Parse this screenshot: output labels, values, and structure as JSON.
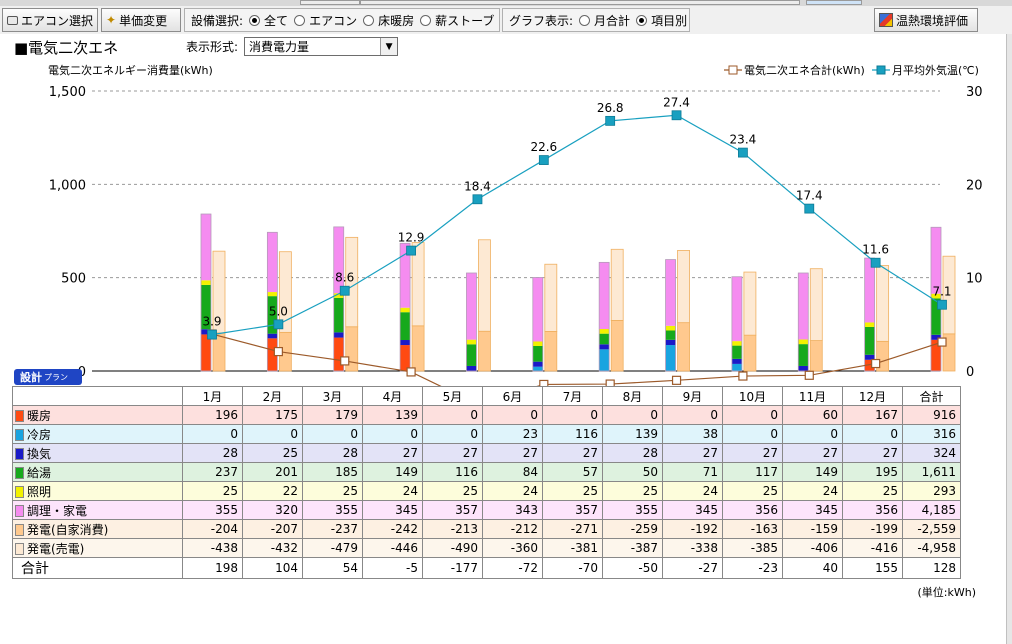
{
  "toolbar": {
    "aircon_select": "エアコン選択",
    "price_change": "単価変更",
    "equip_label": "設備選択:",
    "equip_options": [
      "全て",
      "エアコン",
      "床暖房",
      "薪ストーブ"
    ],
    "equip_selected": 0,
    "graph_label": "グラフ表示:",
    "graph_options": [
      "月合計",
      "項目別"
    ],
    "graph_selected": 1,
    "thermal_eval": "温熱環境評価"
  },
  "panel": {
    "title": "■電気二次エネ",
    "format_label": "表示形式:",
    "format_value": "消費電力量"
  },
  "chart_data": {
    "type": "bar",
    "ylabel": "電気二次エネルギー消費量(kWh)",
    "ylim": [
      0,
      1500
    ],
    "yticks": [
      "1,500",
      "1,000",
      "500",
      "0"
    ],
    "y2lim": [
      0,
      30
    ],
    "y2ticks": [
      "30",
      "20",
      "10",
      "0"
    ],
    "categories": [
      "1月",
      "2月",
      "3月",
      "4月",
      "5月",
      "6月",
      "7月",
      "8月",
      "9月",
      "10月",
      "11月",
      "12月"
    ],
    "consumption_series": [
      {
        "name": "暖房",
        "color": "#ff4a12",
        "values": [
          196,
          175,
          179,
          139,
          0,
          0,
          0,
          0,
          0,
          0,
          60,
          167
        ]
      },
      {
        "name": "冷房",
        "color": "#19a4e0",
        "values": [
          0,
          0,
          0,
          0,
          0,
          23,
          116,
          139,
          38,
          0,
          0,
          0
        ]
      },
      {
        "name": "換気",
        "color": "#1a1ac8",
        "values": [
          28,
          25,
          28,
          27,
          27,
          27,
          27,
          28,
          27,
          27,
          27,
          27
        ]
      },
      {
        "name": "給湯",
        "color": "#16a91c",
        "values": [
          237,
          201,
          185,
          149,
          116,
          84,
          57,
          50,
          71,
          117,
          149,
          195
        ]
      },
      {
        "name": "照明",
        "color": "#f2f200",
        "values": [
          25,
          22,
          25,
          24,
          25,
          24,
          25,
          25,
          24,
          25,
          24,
          25
        ]
      },
      {
        "name": "調理・家電",
        "color": "#f58cf0",
        "values": [
          355,
          320,
          355,
          345,
          357,
          343,
          357,
          355,
          345,
          356,
          345,
          356
        ]
      }
    ],
    "generation_series": [
      {
        "name": "発電(自家消費)",
        "color": "#ffc98e",
        "values": [
          -204,
          -207,
          -237,
          -242,
          -213,
          -212,
          -271,
          -259,
          -192,
          -163,
          -159,
          -199
        ]
      },
      {
        "name": "発電(売電)",
        "color": "#fde9d3",
        "values": [
          -438,
          -432,
          -479,
          -446,
          -490,
          -360,
          -381,
          -387,
          -338,
          -385,
          -406,
          -416
        ]
      }
    ],
    "line_series": [
      {
        "name": "電気二次エネ合計(kWh)",
        "color": "#9c5a2a",
        "axis": "left",
        "values": [
          198,
          104,
          54,
          -5,
          -177,
          -72,
          -70,
          -50,
          -27,
          -23,
          40,
          155
        ]
      },
      {
        "name": "月平均外気温(℃)",
        "color": "#19a0c0",
        "axis": "right",
        "values": [
          3.9,
          5.0,
          8.6,
          12.9,
          18.4,
          22.6,
          26.8,
          27.4,
          23.4,
          17.4,
          11.6,
          7.1
        ],
        "labels": [
          "3.9",
          "5.0",
          "8.6",
          "12.9",
          "18.4",
          "22.6",
          "26.8",
          "27.4",
          "23.4",
          "17.4",
          "11.6",
          "7.1"
        ]
      }
    ],
    "grid": true,
    "legend_position": "top-right"
  },
  "badge": {
    "main": "設計",
    "sub": "プラン"
  },
  "table": {
    "headers": [
      "",
      "1月",
      "2月",
      "3月",
      "4月",
      "5月",
      "6月",
      "7月",
      "8月",
      "9月",
      "10月",
      "11月",
      "12月",
      "合計"
    ],
    "rows": [
      {
        "label": "暖房",
        "color": "#ff4a12",
        "bg": "#fde0de",
        "cells": [
          "196",
          "175",
          "179",
          "139",
          "0",
          "0",
          "0",
          "0",
          "0",
          "0",
          "60",
          "167",
          "916"
        ]
      },
      {
        "label": "冷房",
        "color": "#19a4e0",
        "bg": "#dff4fb",
        "cells": [
          "0",
          "0",
          "0",
          "0",
          "0",
          "23",
          "116",
          "139",
          "38",
          "0",
          "0",
          "0",
          "316"
        ]
      },
      {
        "label": "換気",
        "color": "#1a1ac8",
        "bg": "#e3e3f7",
        "cells": [
          "28",
          "25",
          "28",
          "27",
          "27",
          "27",
          "27",
          "28",
          "27",
          "27",
          "27",
          "27",
          "324"
        ]
      },
      {
        "label": "給湯",
        "color": "#16a91c",
        "bg": "#def2df",
        "cells": [
          "237",
          "201",
          "185",
          "149",
          "116",
          "84",
          "57",
          "50",
          "71",
          "117",
          "149",
          "195",
          "1,611"
        ]
      },
      {
        "label": "照明",
        "color": "#f2f200",
        "bg": "#fdfddb",
        "cells": [
          "25",
          "22",
          "25",
          "24",
          "25",
          "24",
          "25",
          "25",
          "24",
          "25",
          "24",
          "25",
          "293"
        ]
      },
      {
        "label": "調理・家電",
        "color": "#f58cf0",
        "bg": "#fde4fb",
        "cells": [
          "355",
          "320",
          "355",
          "345",
          "357",
          "343",
          "357",
          "355",
          "345",
          "356",
          "345",
          "356",
          "4,185"
        ]
      },
      {
        "label": "発電(自家消費)",
        "color": "#ffc98e",
        "bg": "#fdf0e2",
        "cells": [
          "-204",
          "-207",
          "-237",
          "-242",
          "-213",
          "-212",
          "-271",
          "-259",
          "-192",
          "-163",
          "-159",
          "-199",
          "-2,559"
        ]
      },
      {
        "label": "発電(売電)",
        "color": "#fde9d3",
        "bg": "#fdf6ec",
        "cells": [
          "-438",
          "-432",
          "-479",
          "-446",
          "-490",
          "-360",
          "-381",
          "-387",
          "-338",
          "-385",
          "-406",
          "-416",
          "-4,958"
        ]
      }
    ],
    "total": {
      "label": "合計",
      "cells": [
        "198",
        "104",
        "54",
        "-5",
        "-177",
        "-72",
        "-70",
        "-50",
        "-27",
        "-23",
        "40",
        "155",
        "128"
      ]
    }
  },
  "unit_note": "(単位:kWh)"
}
